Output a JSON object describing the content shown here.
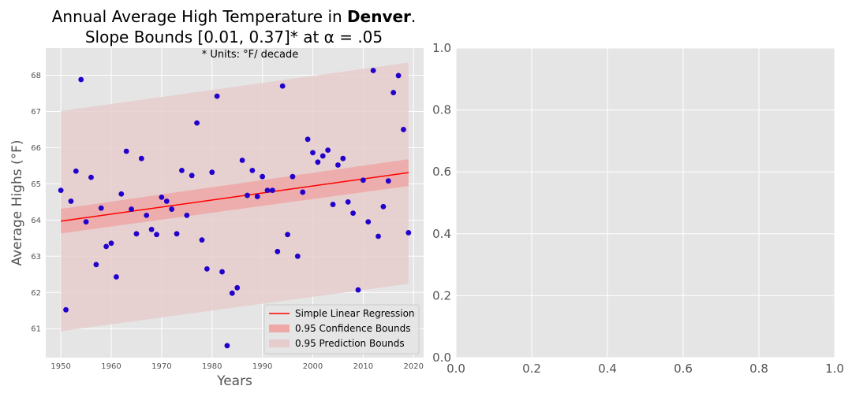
{
  "chart_data": [
    {
      "type": "scatter",
      "title_line1_prefix": "Annual Average High Temperature in ",
      "title_line1_bold": "Denver",
      "title_line1_suffix": ".",
      "title_line2": "Slope Bounds [0.01, 0.37]* at α = .05",
      "annotation": "* Units: °F/ decade",
      "xlabel": "Years",
      "ylabel": "Average Highs (°F)",
      "xlim": [
        1947,
        2022
      ],
      "ylim": [
        60.2,
        68.75
      ],
      "xticks": [
        1950,
        1960,
        1970,
        1980,
        1990,
        2000,
        2010,
        2020
      ],
      "yticks": [
        61,
        62,
        63,
        64,
        65,
        66,
        67,
        68
      ],
      "grid": true,
      "legend_position": "lower-right",
      "legend": [
        {
          "label": "Simple Linear Regression",
          "kind": "line",
          "color": "#ff0000"
        },
        {
          "label": "0.95 Confidence Bounds",
          "kind": "patch",
          "color": "#eea8a8"
        },
        {
          "label": "0.95 Prediction Bounds",
          "kind": "patch",
          "color": "#e6cccc"
        }
      ],
      "points": {
        "name": "Annual average high",
        "color": "#2200cc",
        "x": [
          1950,
          1951,
          1952,
          1953,
          1954,
          1955,
          1956,
          1957,
          1958,
          1959,
          1960,
          1961,
          1962,
          1963,
          1964,
          1965,
          1966,
          1967,
          1968,
          1969,
          1970,
          1971,
          1972,
          1973,
          1974,
          1975,
          1976,
          1977,
          1978,
          1979,
          1980,
          1981,
          1982,
          1983,
          1984,
          1985,
          1986,
          1987,
          1988,
          1989,
          1990,
          1991,
          1992,
          1993,
          1994,
          1995,
          1996,
          1997,
          1998,
          1999,
          2000,
          2001,
          2002,
          2003,
          2004,
          2005,
          2006,
          2007,
          2008,
          2009,
          2010,
          2011,
          2012,
          2013,
          2014,
          2015,
          2016,
          2017,
          2018,
          2019
        ],
        "y": [
          64.82,
          61.52,
          64.52,
          65.35,
          67.88,
          63.95,
          65.18,
          62.77,
          64.33,
          63.27,
          63.36,
          62.43,
          64.72,
          65.9,
          64.3,
          63.62,
          65.7,
          64.13,
          63.74,
          63.6,
          64.63,
          64.52,
          64.3,
          63.62,
          65.37,
          64.13,
          65.23,
          66.68,
          63.45,
          62.65,
          65.32,
          67.42,
          62.57,
          60.53,
          61.98,
          62.13,
          65.65,
          64.68,
          65.37,
          64.65,
          65.2,
          64.82,
          64.82,
          63.13,
          67.7,
          63.6,
          65.2,
          63.0,
          64.77,
          66.23,
          65.86,
          65.6,
          65.77,
          65.93,
          64.43,
          65.52,
          65.7,
          64.5,
          64.19,
          62.07,
          65.1,
          63.95,
          68.13,
          63.55,
          64.37,
          65.08,
          67.52,
          67.99,
          66.5,
          63.65
        ]
      },
      "regression": {
        "name": "Simple Linear Regression",
        "color": "#ff0000",
        "x": [
          1950,
          2019
        ],
        "y": [
          63.97,
          65.31
        ]
      },
      "confidence_band": {
        "name": "0.95 Confidence Bounds",
        "color": "#eea8a8",
        "x": [
          1950,
          2019
        ],
        "lower": [
          63.63,
          64.94
        ],
        "upper": [
          64.31,
          65.68
        ]
      },
      "prediction_band": {
        "name": "0.95 Prediction Bounds",
        "color": "#e6cccc",
        "x": [
          1950,
          2019
        ],
        "lower": [
          60.93,
          62.24
        ],
        "upper": [
          67.01,
          68.35
        ]
      }
    },
    {
      "type": "scatter",
      "title": "",
      "xlim": [
        0.0,
        1.0
      ],
      "ylim": [
        0.0,
        1.0
      ],
      "xtick_labels": [
        "0.0",
        "0.2",
        "0.4",
        "0.6",
        "0.8",
        "1.0"
      ],
      "ytick_labels": [
        "0.0",
        "0.2",
        "0.4",
        "0.6",
        "0.8",
        "1.0"
      ],
      "grid": true,
      "series": []
    }
  ]
}
